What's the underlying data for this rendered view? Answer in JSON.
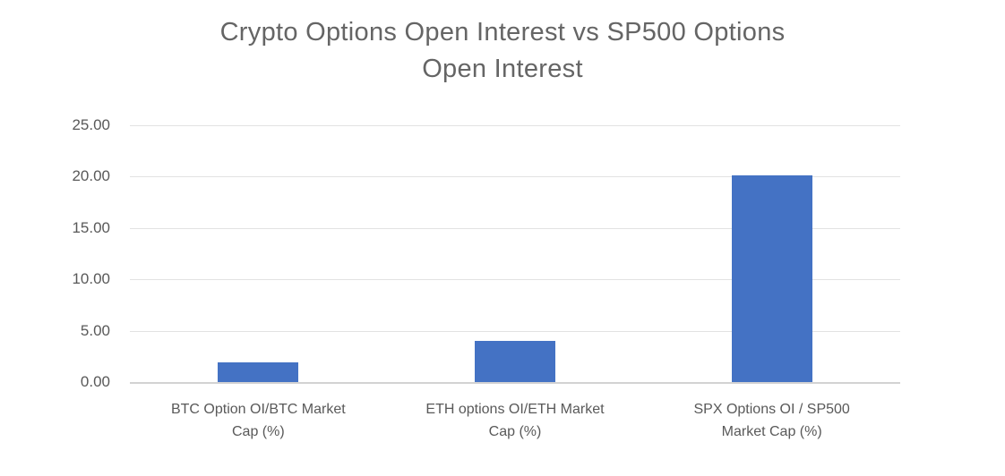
{
  "chart": {
    "title_lines": [
      "Crypto Options Open Interest vs SP500 Options",
      "Open Interest"
    ]
  },
  "chart_data": {
    "type": "bar",
    "title": "Crypto Options Open Interest vs SP500 Options Open Interest",
    "categories": [
      "BTC Option OI/BTC Market Cap (%)",
      "ETH options OI/ETH Market Cap (%)",
      "SPX Options OI / SP500 Market Cap (%)"
    ],
    "values": [
      1.9,
      4.0,
      20.1
    ],
    "xlabel": "",
    "ylabel": "",
    "ylim": [
      0,
      25
    ],
    "yticks": [
      "0.00",
      "5.00",
      "10.00",
      "15.00",
      "20.00",
      "25.00"
    ],
    "grid": true,
    "legend_position": "none",
    "bar_color": "#4472C4",
    "title_color": "#656565",
    "axis_label_color": "#595959",
    "gridline_color": "#e2e2e2",
    "axis_line_color": "#d2d2d2"
  }
}
